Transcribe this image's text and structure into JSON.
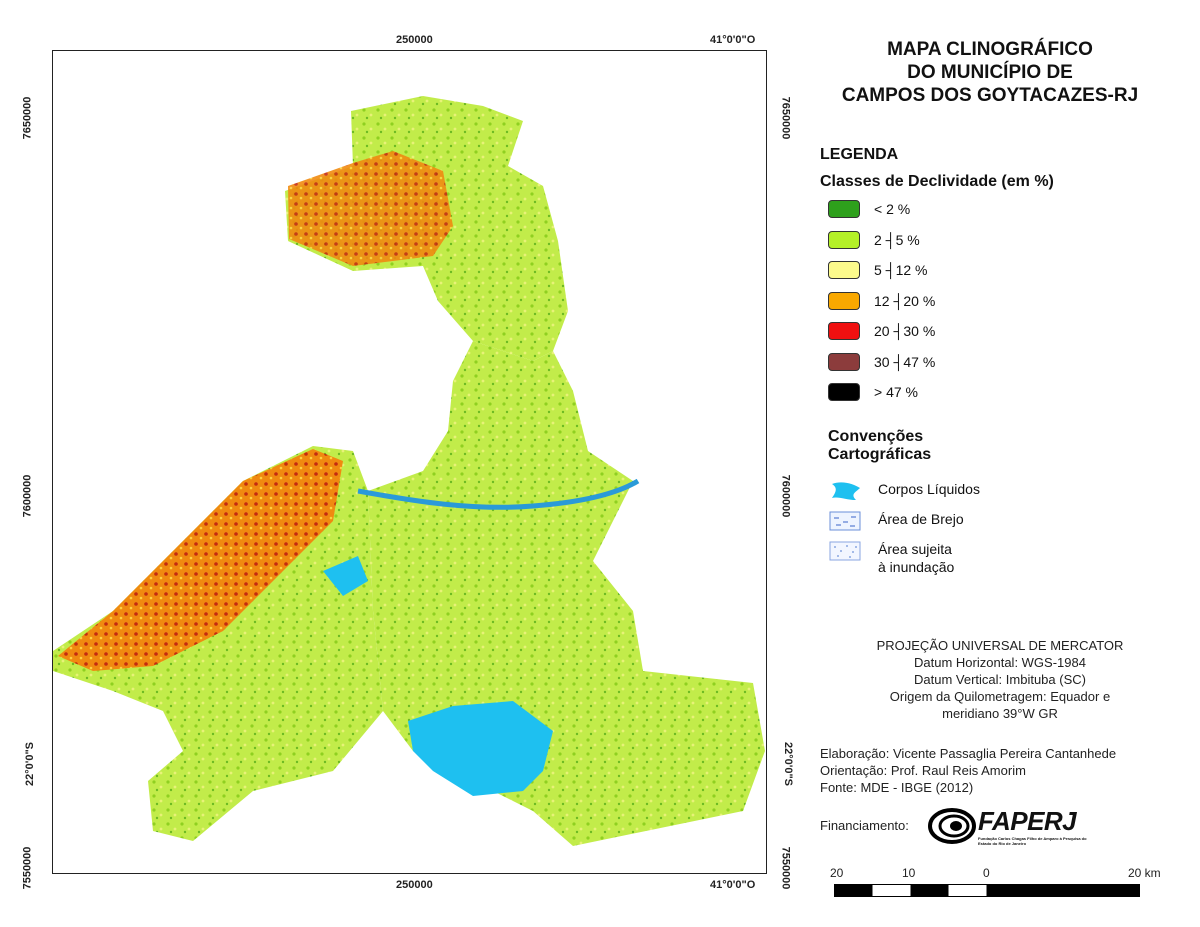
{
  "title": {
    "line1": "MAPA CLINOGRÁFICO",
    "line2": "DO MUNICÍPIO DE",
    "line3": "CAMPOS DOS GOYTACAZES-RJ"
  },
  "coords": {
    "top_x1": "250000",
    "top_x2": "41°0'0\"O",
    "bottom_x1": "250000",
    "bottom_x2": "41°0'0\"O",
    "left_y1": "7650000",
    "left_y2": "7600000",
    "left_y3": "22°0'0\"S",
    "left_y4": "7550000",
    "right_y1": "7650000",
    "right_y2": "7600000",
    "right_y3": "22°0'0\"S",
    "right_y4": "7550000"
  },
  "legend": {
    "heading": "LEGENDA",
    "subheading": "Classes de Declividade (em %)",
    "classes": [
      {
        "label": "< 2 %",
        "color": "#2ea01c"
      },
      {
        "label": "2 ┤5 %",
        "color": "#b4f028"
      },
      {
        "label": "5 ┤12 %",
        "color": "#fcfa8c"
      },
      {
        "label": "12 ┤20 %",
        "color": "#f9a800"
      },
      {
        "label": "20 ┤30 %",
        "color": "#f01010"
      },
      {
        "label": "30 ┤47 %",
        "color": "#8c3c3c"
      },
      {
        "label": "> 47 %",
        "color": "#000000"
      }
    ]
  },
  "conventions": {
    "heading_line1": "Convenções",
    "heading_line2": "Cartográficas",
    "items": [
      {
        "label": "Corpos Líquidos",
        "icon": "water-body-icon"
      },
      {
        "label": "Área de Brejo",
        "icon": "marsh-icon"
      },
      {
        "label_line1": "Área sujeita",
        "label_line2": "à inundação",
        "icon": "flood-area-icon"
      }
    ]
  },
  "projection": {
    "line1": "PROJEÇÃO UNIVERSAL DE MERCATOR",
    "line2": "Datum Horizontal: WGS-1984",
    "line3": "Datum Vertical: Imbituba (SC)",
    "line4": "Origem da Quilometragem: Equador e",
    "line5": "meridiano 39°W GR"
  },
  "credits": {
    "line1": "Elaboração: Vicente Passaglia Pereira Cantanhede",
    "line2": "Orientação: Prof. Raul Reis Amorim",
    "line3": "Fonte: MDE - IBGE (2012)"
  },
  "funding": {
    "label": "Financiamento:",
    "logo_text": "FAPERJ",
    "logo_subtext": "Fundação Carlos Chagas Filho de Amparo à Pesquisa do Estado do Rio de Janeiro"
  },
  "scale": {
    "labels": [
      "20",
      "10",
      "0",
      "20 km"
    ]
  },
  "colors": {
    "water": "#1ec0f0",
    "frame": "#222222"
  }
}
